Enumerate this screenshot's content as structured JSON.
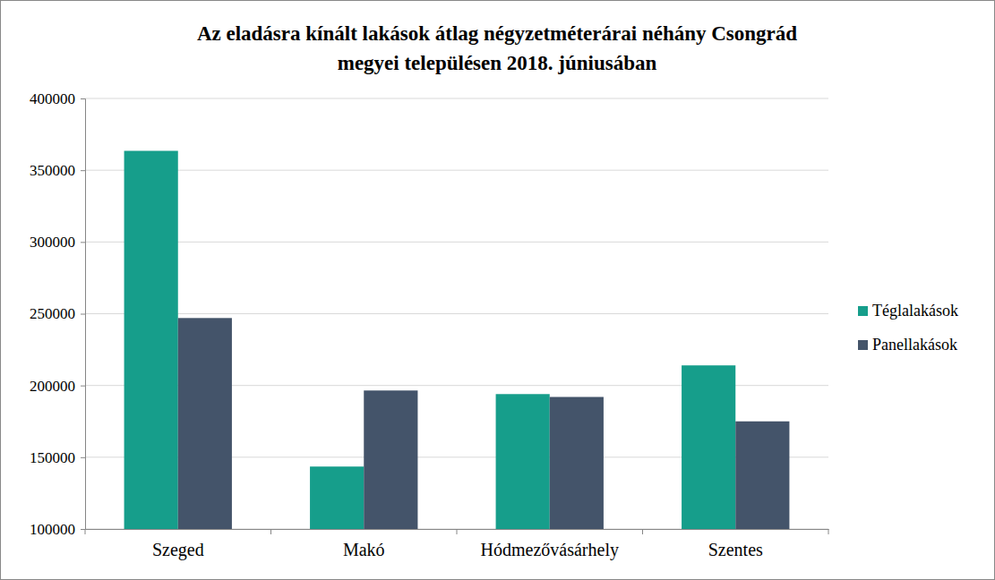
{
  "chart_data": {
    "type": "bar",
    "title": "Az eladásra kínált lakások átlag négyzetméterárai néhány Csongrád\nmegyei településen 2018. júniusában",
    "categories": [
      "Szeged",
      "Makó",
      "Hódmezővásárhely",
      "Szentes"
    ],
    "series": [
      {
        "name": "Téglalakások",
        "color": "#169e8b",
        "values": [
          363500,
          143500,
          194000,
          214000
        ]
      },
      {
        "name": "Panellakások",
        "color": "#44546a",
        "values": [
          247000,
          196500,
          192000,
          175000
        ]
      }
    ],
    "ylim": [
      100000,
      400000
    ],
    "yticks": [
      100000,
      150000,
      200000,
      250000,
      300000,
      350000,
      400000
    ],
    "grid": true,
    "legend": "right"
  }
}
